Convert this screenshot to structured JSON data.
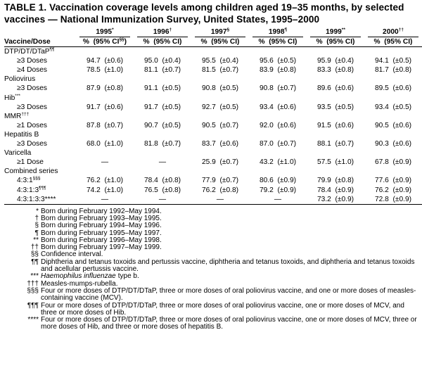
{
  "title": "TABLE 1. Vaccination coverage levels among children aged 19–35 months, by selected vaccines — National Immunization Survey, United States, 1995–2000",
  "table": {
    "row_header": "Vaccine/Dose",
    "year_headers": [
      {
        "year": "1995",
        "mark": "*"
      },
      {
        "year": "1996",
        "mark": "†"
      },
      {
        "year": "1997",
        "mark": "§"
      },
      {
        "year": "1998",
        "mark": "¶"
      },
      {
        "year": "1999",
        "mark": "**"
      },
      {
        "year": "2000",
        "mark": "††"
      }
    ],
    "column_headers": [
      {
        "text": "%  (95% CI",
        "mark": "§§",
        "close": ")"
      },
      {
        "text": "%  (95% CI)"
      },
      {
        "text": "%  (95% CI)"
      },
      {
        "text": "%  (95% CI)"
      },
      {
        "text": "%  (95% CI)"
      },
      {
        "text": "%  (95% CI)"
      }
    ],
    "rows": [
      {
        "label": "DTP/DT/DTaP",
        "mark": "¶¶"
      },
      {
        "label": "≥3 Doses",
        "cells": [
          "94.7  (±0.6)",
          "95.0  (±0.4)",
          "95.5  (±0.4)",
          "95.6  (±0.5)",
          "95.9  (±0.4)",
          "94.1  (±0.5)"
        ]
      },
      {
        "label": "≥4 Doses",
        "cells": [
          "78.5  (±1.0)",
          "81.1  (±0.7)",
          "81.5  (±0.7)",
          "83.9  (±0.8)",
          "83.3  (±0.8)",
          "81.7  (±0.8)"
        ]
      },
      {
        "label": "Poliovirus"
      },
      {
        "label": "≥3 Doses",
        "cells": [
          "87.9  (±0.8)",
          "91.1  (±0.5)",
          "90.8  (±0.5)",
          "90.8  (±0.7)",
          "89.6  (±0.6)",
          "89.5  (±0.6)"
        ]
      },
      {
        "label": "Hib",
        "mark": "***"
      },
      {
        "label": "≥3 Doses",
        "cells": [
          "91.7  (±0.6)",
          "91.7  (±0.5)",
          "92.7  (±0.5)",
          "93.4  (±0.6)",
          "93.5  (±0.5)",
          "93.4  (±0.5)"
        ]
      },
      {
        "label": "MMR",
        "mark": "†††"
      },
      {
        "label": "≥1 Doses",
        "cells": [
          "87.8  (±0.7)",
          "90.7  (±0.5)",
          "90.5  (±0.7)",
          "92.0  (±0.6)",
          "91.5  (±0.6)",
          "90.5  (±0.6)"
        ]
      },
      {
        "label": "Hepatitis B"
      },
      {
        "label": "≥3 Doses",
        "cells": [
          "68.0  (±1.0)",
          "81.8  (±0.7)",
          "83.7  (±0.6)",
          "87.0  (±0.7)",
          "88.1  (±0.7)",
          "90.3  (±0.6)"
        ]
      },
      {
        "label": "Varicella"
      },
      {
        "label": "≥1 Dose",
        "cells": [
          "—",
          "—",
          "25.9  (±0.7)",
          "43.2  (±1.0)",
          "57.5  (±1.0)",
          "67.8  (±0.9)"
        ]
      },
      {
        "label": "Combined series"
      },
      {
        "label": "4:3:1",
        "mark": "§§§",
        "cells": [
          "76.2  (±1.0)",
          "78.4  (±0.8)",
          "77.9  (±0.7)",
          "80.6  (±0.9)",
          "79.9  (±0.8)",
          "77.6  (±0.9)"
        ]
      },
      {
        "label": "4:3:1:3",
        "mark": "¶¶¶",
        "cells": [
          "74.2  (±1.0)",
          "76.5  (±0.8)",
          "76.2  (±0.8)",
          "79.2  (±0.9)",
          "78.4  (±0.9)",
          "76.2  (±0.9)"
        ]
      },
      {
        "label": "4:3:1:3:3****",
        "cells": [
          "—",
          "—",
          "—",
          "—",
          "73.2  (±0.9)",
          "72.8  (±0.9)"
        ]
      }
    ]
  },
  "footnotes": [
    {
      "mark": "*",
      "text": "Born during February 1992–May 1994."
    },
    {
      "mark": "†",
      "text": "Born during February 1993–May 1995."
    },
    {
      "mark": "§",
      "text": "Born during February 1994–May 1996."
    },
    {
      "mark": "¶",
      "text": "Born during February 1995–May 1997."
    },
    {
      "mark": "**",
      "text": "Born during February 1996–May 1998."
    },
    {
      "mark": "††",
      "text": "Born during February 1997–May 1999."
    },
    {
      "mark": "§§",
      "text": "Confidence interval."
    },
    {
      "mark": "¶¶",
      "text": "Diphtheria and tetanus toxoids and pertussis vaccine, diphtheria and tetanus toxoids, and diphtheria and tetanus toxoids and acellular pertussis vaccine."
    },
    {
      "mark": "***",
      "italic": "Haemophilus influenzae",
      "text": "type b."
    },
    {
      "mark": "†††",
      "text": "Measles-mumps-rubella."
    },
    {
      "mark": "§§§",
      "text": "Four or more doses of DTP/DT/DTaP, three or more doses of oral poliovirus vaccine, and one or more doses of measles-containing vaccine (MCV)."
    },
    {
      "mark": "¶¶¶",
      "text": "Four or more doses of DTP/DT/DTaP, three or more doses of oral poliovirus vaccine, one or more doses of MCV, and three or more doses of Hib."
    },
    {
      "mark": "****",
      "text": "Four or more doses of DTP/DT/DTaP, three or more doses of oral poliovirus vaccine, one or more doses of MCV, three or more doses of Hib, and three or more doses of hepatitis B."
    }
  ]
}
